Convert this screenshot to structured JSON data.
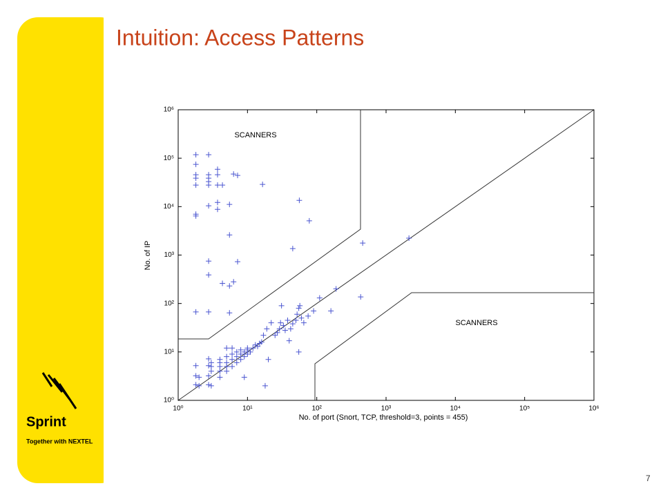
{
  "slide": {
    "title": "Intuition: Access Patterns",
    "page_number": "7",
    "logo": {
      "brand": "Sprint",
      "tagline": "Together with NEXTEL"
    }
  },
  "chart_data": {
    "type": "scatter",
    "xlabel": "No. of port (Snort, TCP, threshold=3, points = 455)",
    "ylabel": "No. of IP",
    "annotations": [
      "SCANNERS",
      "SCANNERS"
    ],
    "color": "#4a55d0",
    "xscale": "log",
    "yscale": "log",
    "xlim": [
      1,
      1000000
    ],
    "ylim": [
      1,
      1000000
    ],
    "xticks": [
      {
        "value": 1,
        "label": "10⁰"
      },
      {
        "value": 10,
        "label": "10¹"
      },
      {
        "value": 100,
        "label": "10²"
      },
      {
        "value": 1000,
        "label": "10³"
      },
      {
        "value": 10000,
        "label": "10⁴"
      },
      {
        "value": 100000,
        "label": "10⁵"
      },
      {
        "value": 1000000,
        "label": "10⁶"
      }
    ],
    "yticks": [
      {
        "value": 1,
        "label": "10⁰"
      },
      {
        "value": 10,
        "label": "10¹"
      },
      {
        "value": 100,
        "label": "10²"
      },
      {
        "value": 1000,
        "label": "10³"
      },
      {
        "value": 10000,
        "label": "10⁴"
      },
      {
        "value": 100000,
        "label": "10⁵"
      },
      {
        "value": 1000000,
        "label": "10⁶"
      }
    ],
    "x": [
      1.8,
      1.8,
      1.8,
      1.8,
      1.8,
      1.8,
      1.8,
      1.8,
      1.8,
      1.8,
      1.8,
      2.75,
      2.75,
      2.75,
      2.75,
      2.75,
      2.75,
      2.75,
      2.75,
      2.75,
      2.75,
      2.75,
      2.75,
      2.75,
      3.7,
      3.7,
      3.7,
      3.7,
      3.7,
      4.35,
      4.35,
      5.5,
      5.5,
      5.5,
      5.5,
      6.3,
      6.3,
      7.2,
      7.2,
      16.5,
      56,
      78,
      45,
      460,
      2140,
      430,
      2,
      2,
      3,
      3,
      3,
      3,
      4,
      4,
      4,
      4,
      4,
      5,
      5,
      5,
      5,
      5,
      6,
      6,
      6,
      6,
      7,
      7,
      7,
      8,
      8,
      8,
      9,
      9,
      9,
      10,
      10,
      10,
      11,
      12,
      13,
      14,
      15,
      16,
      17,
      18,
      19,
      20,
      22,
      25,
      27,
      29,
      30,
      31,
      33,
      35,
      38,
      40,
      42,
      45,
      50,
      52,
      55,
      55,
      57,
      60,
      65,
      75,
      90,
      110,
      160,
      190
    ],
    "values": [
      118000,
      74500,
      45500,
      38600,
      27800,
      7000,
      6400,
      67,
      5.2,
      3.2,
      2.1,
      118000,
      45500,
      38600,
      32800,
      27800,
      10400,
      750,
      390,
      67,
      7.2,
      5.2,
      3.2,
      2.1,
      59000,
      45500,
      27800,
      12200,
      8800,
      27800,
      260,
      11100,
      2600,
      230,
      64,
      47000,
      280,
      44000,
      730,
      28800,
      13500,
      5100,
      1360,
      1770,
      2230,
      137,
      2,
      3,
      2,
      4,
      5,
      6,
      3,
      4,
      5,
      6,
      7,
      4,
      5,
      6,
      8,
      12,
      5,
      7,
      9,
      12,
      6,
      8,
      10,
      7,
      9,
      11,
      3,
      8,
      10,
      9,
      11,
      12,
      10,
      12,
      14,
      13,
      15,
      16,
      22,
      2,
      30,
      7,
      40,
      22,
      25,
      30,
      40,
      90,
      35,
      28,
      45,
      17,
      30,
      38,
      45,
      60,
      10,
      80,
      90,
      50,
      40,
      55,
      70,
      130,
      70,
      200
    ]
  }
}
